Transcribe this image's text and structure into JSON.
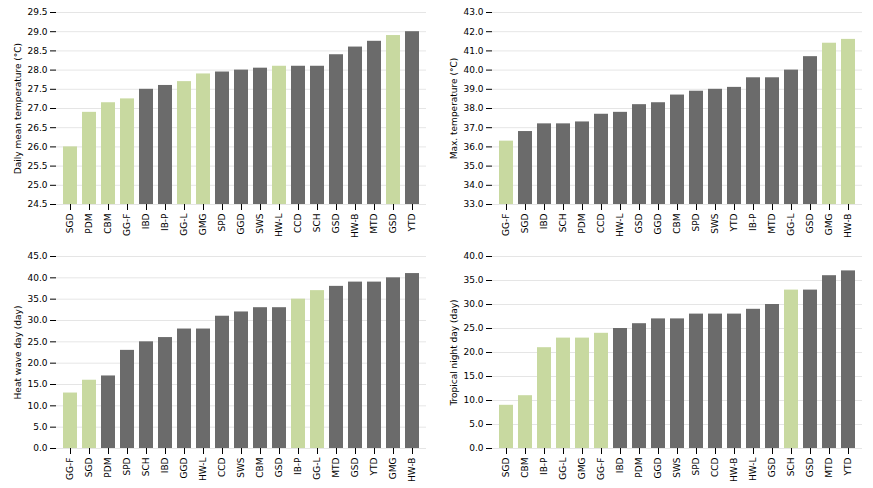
{
  "chart_data": [
    {
      "type": "bar",
      "ylabel": "Daily mean temperature (°C)",
      "grid": true,
      "ylim": [
        24.5,
        29.5
      ],
      "yticks": [
        24.5,
        {
          "value": 25.0,
          "label": "25.0"
        },
        25.5,
        {
          "value": 26.0,
          "label": "26.0"
        },
        26.5,
        {
          "value": 27.0,
          "label": "27.0"
        },
        27.5,
        {
          "value": 28.0,
          "label": "28.0"
        },
        28.5,
        {
          "value": 29.0,
          "label": "29.0"
        },
        29.5
      ],
      "categories": [
        "SGD",
        "PDM",
        "CBM",
        "GG-F",
        "IBD",
        "IB-P",
        "GG-L",
        "GMG",
        "SPD",
        "GGD",
        "SWS",
        "HW-L",
        "CCD",
        "SCH",
        "GSD",
        "HW-B",
        "MTD",
        "GSD",
        "YTD"
      ],
      "values": [
        26.0,
        26.9,
        27.15,
        27.25,
        27.5,
        27.6,
        27.7,
        27.9,
        27.95,
        28.0,
        28.05,
        28.1,
        28.1,
        28.1,
        28.4,
        28.6,
        28.75,
        28.9,
        29.0
      ],
      "colors": [
        "#c8d9a0",
        "#c8d9a0",
        "#c8d9a0",
        "#c8d9a0",
        "#6b6b6b",
        "#6b6b6b",
        "#c8d9a0",
        "#c8d9a0",
        "#6b6b6b",
        "#6b6b6b",
        "#6b6b6b",
        "#c8d9a0",
        "#6b6b6b",
        "#6b6b6b",
        "#6b6b6b",
        "#6b6b6b",
        "#6b6b6b",
        "#c8d9a0",
        "#6b6b6b"
      ]
    },
    {
      "type": "bar",
      "ylabel": "Max. temperature (°C)",
      "grid": true,
      "ylim": [
        33.0,
        43.0
      ],
      "yticks": [
        {
          "value": 33.0,
          "label": "33.0"
        },
        {
          "value": 34.0,
          "label": "34.0"
        },
        {
          "value": 35.0,
          "label": "35.0"
        },
        {
          "value": 36.0,
          "label": "36.0"
        },
        {
          "value": 37.0,
          "label": "37.0"
        },
        {
          "value": 38.0,
          "label": "38.0"
        },
        {
          "value": 39.0,
          "label": "39.0"
        },
        {
          "value": 40.0,
          "label": "40.0"
        },
        {
          "value": 41.0,
          "label": "41.0"
        },
        {
          "value": 42.0,
          "label": "42.0"
        },
        {
          "value": 43.0,
          "label": "43.0"
        }
      ],
      "categories": [
        "GG-F",
        "SGD",
        "IBD",
        "SCH",
        "PDM",
        "CCD",
        "HW-L",
        "GSD",
        "GGD",
        "CBM",
        "SPD",
        "SWS",
        "YTD",
        "IB-P",
        "MTD",
        "GG-L",
        "GSD",
        "GMG",
        "HW-B"
      ],
      "values": [
        36.3,
        36.8,
        37.2,
        37.2,
        37.3,
        37.7,
        37.8,
        38.2,
        38.3,
        38.7,
        38.9,
        39.0,
        39.1,
        39.6,
        39.6,
        40.0,
        40.7,
        41.4,
        41.6
      ],
      "colors": [
        "#c8d9a0",
        "#6b6b6b",
        "#6b6b6b",
        "#6b6b6b",
        "#6b6b6b",
        "#6b6b6b",
        "#6b6b6b",
        "#6b6b6b",
        "#6b6b6b",
        "#6b6b6b",
        "#6b6b6b",
        "#6b6b6b",
        "#6b6b6b",
        "#6b6b6b",
        "#6b6b6b",
        "#6b6b6b",
        "#6b6b6b",
        "#c8d9a0",
        "#c8d9a0"
      ]
    },
    {
      "type": "bar",
      "ylabel": "Heat wave day (day)",
      "grid": true,
      "ylim": [
        0.0,
        45.0
      ],
      "yticks": [
        {
          "value": 0.0,
          "label": "0.0"
        },
        {
          "value": 5.0,
          "label": "5.0"
        },
        {
          "value": 10.0,
          "label": "10.0"
        },
        {
          "value": 15.0,
          "label": "15.0"
        },
        {
          "value": 20.0,
          "label": "20.0"
        },
        {
          "value": 25.0,
          "label": "25.0"
        },
        {
          "value": 30.0,
          "label": "30.0"
        },
        {
          "value": 35.0,
          "label": "35.0"
        },
        {
          "value": 40.0,
          "label": "40.0"
        },
        {
          "value": 45.0,
          "label": "45.0"
        }
      ],
      "categories": [
        "GG-F",
        "SGD",
        "PDM",
        "SPD",
        "SCH",
        "IBD",
        "GGD",
        "HW-L",
        "CCD",
        "SWS",
        "CBM",
        "GSD",
        "IB-P",
        "GG-L",
        "MTD",
        "GSD",
        "YTD",
        "GMG",
        "HW-B"
      ],
      "values": [
        13.0,
        16.0,
        17.0,
        23.0,
        25.0,
        26.0,
        28.0,
        28.0,
        31.0,
        32.0,
        33.0,
        33.0,
        35.0,
        37.0,
        38.0,
        39.0,
        39.0,
        40.0,
        41.0
      ],
      "colors": [
        "#c8d9a0",
        "#c8d9a0",
        "#6b6b6b",
        "#6b6b6b",
        "#6b6b6b",
        "#6b6b6b",
        "#6b6b6b",
        "#6b6b6b",
        "#6b6b6b",
        "#6b6b6b",
        "#6b6b6b",
        "#6b6b6b",
        "#c8d9a0",
        "#c8d9a0",
        "#6b6b6b",
        "#6b6b6b",
        "#6b6b6b",
        "#6b6b6b",
        "#6b6b6b"
      ]
    },
    {
      "type": "bar",
      "ylabel": "Tropical night day (day)",
      "grid": true,
      "ylim": [
        0.0,
        40.0
      ],
      "yticks": [
        {
          "value": 0.0,
          "label": "0.0"
        },
        {
          "value": 5.0,
          "label": "5.0"
        },
        {
          "value": 10.0,
          "label": "10.0"
        },
        {
          "value": 15.0,
          "label": "15.0"
        },
        {
          "value": 20.0,
          "label": "20.0"
        },
        {
          "value": 25.0,
          "label": "25.0"
        },
        {
          "value": 30.0,
          "label": "30.0"
        },
        {
          "value": 35.0,
          "label": "35.0"
        },
        {
          "value": 40.0,
          "label": "40.0"
        }
      ],
      "categories": [
        "SGD",
        "CBM",
        "IB-P",
        "GG-L",
        "GMG",
        "GG-F",
        "IBD",
        "PDM",
        "GGD",
        "SWS",
        "SPD",
        "CCD",
        "HW-B",
        "HW-L",
        "GSD",
        "SCH",
        "GSD",
        "MTD",
        "YTD"
      ],
      "values": [
        9.0,
        11.0,
        21.0,
        23.0,
        23.0,
        24.0,
        25.0,
        26.0,
        27.0,
        27.0,
        28.0,
        28.0,
        28.0,
        29.0,
        30.0,
        33.0,
        33.0,
        36.0,
        37.0
      ],
      "colors": [
        "#c8d9a0",
        "#c8d9a0",
        "#c8d9a0",
        "#c8d9a0",
        "#c8d9a0",
        "#c8d9a0",
        "#6b6b6b",
        "#6b6b6b",
        "#6b6b6b",
        "#6b6b6b",
        "#6b6b6b",
        "#6b6b6b",
        "#6b6b6b",
        "#6b6b6b",
        "#6b6b6b",
        "#c8d9a0",
        "#6b6b6b",
        "#6b6b6b",
        "#6b6b6b"
      ]
    }
  ]
}
